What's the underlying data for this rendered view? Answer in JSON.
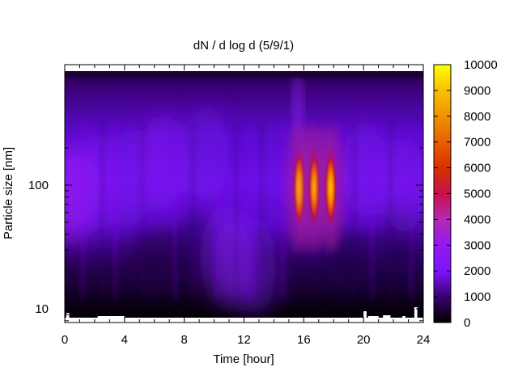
{
  "chart_data": {
    "type": "heatmap",
    "title": "dN / d log d (5/9/1)",
    "xlabel": "Time [hour]",
    "ylabel": "Particle size [nm]",
    "xlim": [
      0,
      24
    ],
    "ylim_log": [
      8,
      180
    ],
    "y_scale": "log",
    "x_ticks": [
      0,
      4,
      8,
      12,
      16,
      20,
      24
    ],
    "x_tick_labels": [
      "0",
      "4",
      "8",
      "12",
      "16",
      "20",
      "24"
    ],
    "y_ticks": [
      10,
      100
    ],
    "y_tick_labels": [
      "10",
      "100"
    ],
    "colorbar": {
      "range": [
        0,
        10000
      ],
      "ticks": [
        0,
        1000,
        2000,
        3000,
        4000,
        5000,
        6000,
        7000,
        8000,
        9000,
        10000
      ],
      "tick_labels": [
        "0",
        "1000",
        "2000",
        "3000",
        "4000",
        "5000",
        "6000",
        "7000",
        "8000",
        "9000",
        "10000"
      ],
      "colormap": [
        "#000000",
        "#3a0070",
        "#7d14ff",
        "#a828c8",
        "#c8104a",
        "#e04a00",
        "#f08800",
        "#fcc300",
        "#ffff00"
      ]
    },
    "features": [
      {
        "time_hour": 15.7,
        "size_nm": 95,
        "peak_value": 8500
      },
      {
        "time_hour": 16.7,
        "size_nm": 95,
        "peak_value": 6500
      },
      {
        "time_hour": 17.8,
        "size_nm": 95,
        "peak_value": 7200
      }
    ],
    "grid": false,
    "legend": "colorbar-right"
  }
}
